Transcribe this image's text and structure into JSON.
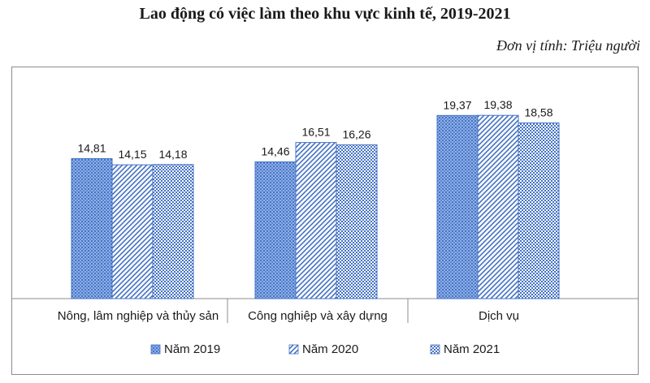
{
  "chart_data": {
    "type": "bar",
    "title": "Lao động có việc làm theo khu vực kinh tế, 2019-2021",
    "subtitle": "Đơn vị tính: Triệu người",
    "categories": [
      "Nông, lâm nghiệp và thủy sản",
      "Công nghiệp và xây dựng",
      "Dịch vụ"
    ],
    "series": [
      {
        "name": "Năm 2019",
        "values": [
          14.81,
          14.46,
          19.37
        ],
        "labels": [
          "14,81",
          "14,46",
          "19,37"
        ],
        "pattern": "dots",
        "color": "#6a8fd0"
      },
      {
        "name": "Năm 2020",
        "values": [
          14.15,
          16.51,
          19.38
        ],
        "labels": [
          "14,15",
          "16,51",
          "19,38"
        ],
        "pattern": "diagonal",
        "color": "#4472c4"
      },
      {
        "name": "Năm 2021",
        "values": [
          14.18,
          16.26,
          18.58
        ],
        "labels": [
          "14,18",
          "16,26",
          "18,58"
        ],
        "pattern": "checker",
        "color": "#4472c4"
      }
    ],
    "ylim": [
      0,
      23
    ],
    "grid": false,
    "legend": "bottom"
  }
}
